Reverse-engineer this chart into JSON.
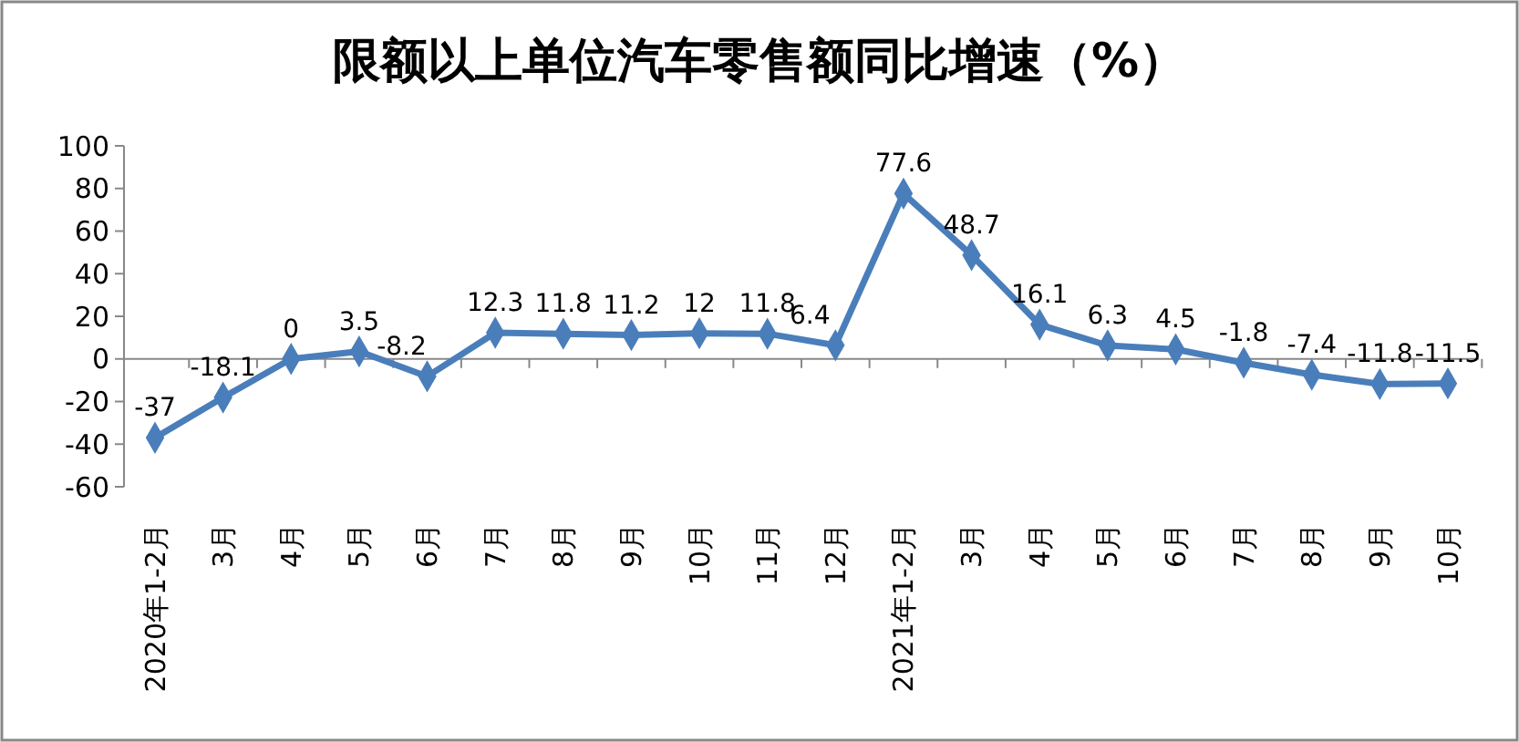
{
  "chart_data": {
    "type": "line",
    "title": "限额以上单位汽车零售额同比增速（%）",
    "categories": [
      "2020年1-2月",
      "3月",
      "4月",
      "5月",
      "6月",
      "7月",
      "8月",
      "9月",
      "10月",
      "11月",
      "12月",
      "2021年1-2月",
      "3月",
      "4月",
      "5月",
      "6月",
      "7月",
      "8月",
      "9月",
      "10月"
    ],
    "series": [
      {
        "color": "#4a7ebb",
        "values": [
          -37,
          -18.1,
          0,
          3.5,
          -8.2,
          12.3,
          11.8,
          11.2,
          12,
          11.8,
          6.4,
          77.6,
          48.7,
          16.1,
          6.3,
          4.5,
          -1.8,
          -7.4,
          -11.8,
          -11.5
        ]
      }
    ],
    "ylim": [
      -60,
      100
    ],
    "yticks": [
      -60,
      -40,
      -20,
      0,
      20,
      40,
      60,
      80,
      100
    ],
    "marker": "diamond",
    "line_style": "solid",
    "data_labels": true
  }
}
